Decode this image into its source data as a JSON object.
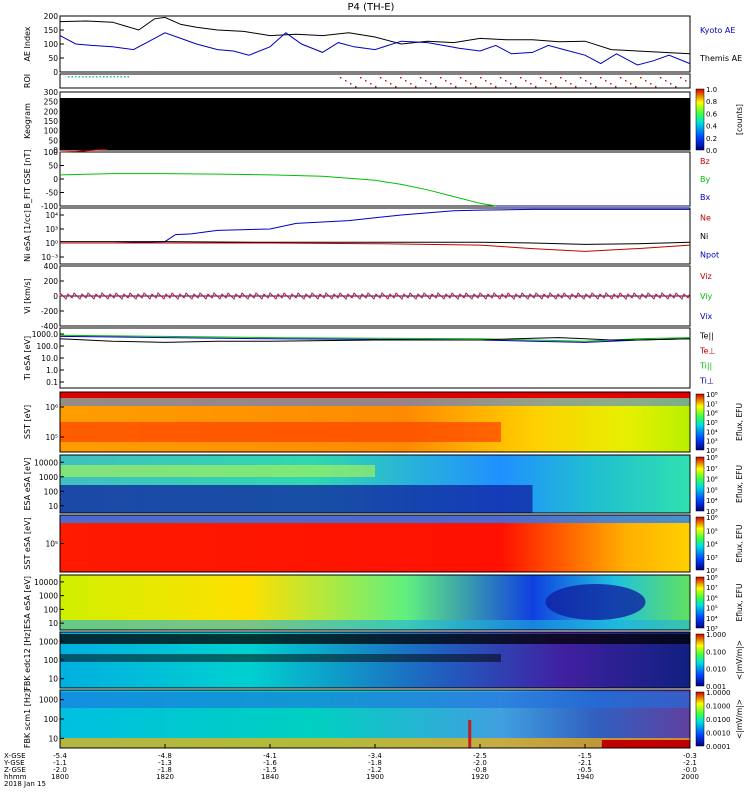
{
  "title": "P4 (TH-E)",
  "chart_data": {
    "type": "line",
    "x_range": [
      1800,
      2000
    ],
    "x_ticks": [
      {
        "x": 1800,
        "values": [
          "-5.4",
          "-1.1",
          "-2.0",
          "1800"
        ]
      },
      {
        "x": 1820,
        "values": [
          "-4.8",
          "-1.3",
          "-1.8",
          "1820"
        ]
      },
      {
        "x": 1840,
        "values": [
          "-4.1",
          "-1.6",
          "-1.5",
          "1840"
        ]
      },
      {
        "x": 1900,
        "values": [
          "-3.4",
          "-1.8",
          "-1.2",
          "1900"
        ]
      },
      {
        "x": 1920,
        "values": [
          "-2.5",
          "-2.0",
          "-0.8",
          "1920"
        ]
      },
      {
        "x": 1940,
        "values": [
          "-1.5",
          "-2.1",
          "-0.5",
          "1940"
        ]
      },
      {
        "x": 2000,
        "values": [
          "-0.3",
          "-2.1",
          "-0.0",
          "2000"
        ]
      }
    ],
    "x_row_labels": [
      "X-GSE",
      "Y-GSE",
      "Z-GSE",
      "hhmm"
    ],
    "date_label": "2018 Jan 15",
    "panels": [
      {
        "id": "ae",
        "ylabel": "AE Index",
        "ylim": [
          0,
          200
        ],
        "yticks": [
          "0",
          "50",
          "100",
          "150",
          "200"
        ],
        "legend": [
          {
            "name": "Kyoto AE",
            "color": "#0000c0"
          },
          {
            "name": "Themis AE",
            "color": "#000000"
          }
        ],
        "series": [
          {
            "name": "Themis AE",
            "color": "#000000",
            "x": [
              1800,
              1805,
              1810,
              1815,
              1818,
              1820,
              1823,
              1826,
              1830,
              1835,
              1840,
              1845,
              1850,
              1855,
              1900,
              1905,
              1910,
              1915,
              1920,
              1925,
              1930,
              1935,
              1940,
              1945,
              1950,
              1955,
              2000
            ],
            "y": [
              180,
              182,
              178,
              150,
              190,
              195,
              170,
              160,
              150,
              145,
              130,
              135,
              130,
              140,
              125,
              100,
              110,
              105,
              120,
              115,
              115,
              108,
              110,
              80,
              75,
              70,
              65
            ]
          },
          {
            "name": "Kyoto AE",
            "color": "#0000c0",
            "x": [
              1800,
              1803,
              1806,
              1810,
              1814,
              1817,
              1820,
              1823,
              1826,
              1830,
              1833,
              1836,
              1840,
              1843,
              1846,
              1850,
              1853,
              1856,
              1900,
              1905,
              1910,
              1913,
              1916,
              1920,
              1923,
              1926,
              1930,
              1933,
              1936,
              1940,
              1943,
              1946,
              1950,
              1953,
              1956,
              2000
            ],
            "y": [
              130,
              100,
              95,
              90,
              80,
              110,
              140,
              120,
              100,
              80,
              75,
              60,
              90,
              140,
              100,
              70,
              105,
              90,
              80,
              110,
              105,
              95,
              85,
              75,
              95,
              65,
              70,
              95,
              80,
              60,
              30,
              65,
              25,
              40,
              60,
              30
            ]
          }
        ]
      },
      {
        "id": "roi",
        "ylabel": "ROI"
      },
      {
        "id": "keogram",
        "ylabel": "Keogram",
        "ylim": [
          0,
          300
        ],
        "yticks": [
          "0",
          "50",
          "100",
          "150",
          "200",
          "250",
          "300"
        ],
        "colorbar": {
          "label": "[counts]",
          "ticks": [
            "0.0",
            "0.2",
            "0.4",
            "0.6",
            "0.8",
            "1.0"
          ]
        }
      },
      {
        "id": "bfit",
        "ylabel": "B_FIT GSE [nT]",
        "ylim": [
          -100,
          100
        ],
        "yticks": [
          "-100",
          "-50",
          "0",
          "50",
          "100"
        ],
        "legend": [
          {
            "name": "Bz",
            "color": "#c00000"
          },
          {
            "name": "By",
            "color": "#00c000"
          },
          {
            "name": "Bx",
            "color": "#0000c0"
          }
        ],
        "series": [
          {
            "name": "By",
            "color": "#00c000",
            "x": [
              1800,
              1810,
              1820,
              1830,
              1840,
              1850,
              1900,
              1905,
              1910,
              1915,
              1920,
              1923
            ],
            "y": [
              15,
              20,
              20,
              18,
              15,
              10,
              -5,
              -20,
              -40,
              -65,
              -90,
              -100
            ]
          },
          {
            "name": "Bz",
            "color": "#c00000",
            "x": [
              1800,
              1803,
              1806,
              1809
            ],
            "y": [
              100,
              102,
              106,
              110
            ]
          },
          {
            "name": "Bx",
            "color": "#0000c0",
            "x": [
              1923,
              1940,
              2000
            ],
            "y": [
              -100,
              -100,
              -100
            ]
          }
        ]
      },
      {
        "id": "ni",
        "ylabel": "Ni eSA [1/cc]",
        "ylim": [
          -3,
          5
        ],
        "log": true,
        "yticks": [
          "10⁴",
          "10³",
          "10⁰",
          "10⁻³"
        ],
        "legend": [
          {
            "name": "Ne",
            "color": "#c00000"
          },
          {
            "name": "Ni",
            "color": "#000000"
          },
          {
            "name": "Npot",
            "color": "#0000c0"
          }
        ],
        "series": [
          {
            "name": "Npot",
            "color": "#0000c0",
            "x": [
              1800,
              1810,
              1820,
              1822,
              1825,
              1828,
              1830,
              1840,
              1845,
              1850,
              1855,
              1900,
              1905,
              1910,
              1915,
              1920,
              1930,
              1940,
              2000
            ],
            "y": [
              0,
              0,
              0.2,
              1.2,
              1.3,
              1.6,
              1.8,
              2,
              2.8,
              3,
              3.2,
              3.6,
              4,
              4.3,
              4.6,
              4.7,
              4.8,
              4.8,
              4.8
            ]
          },
          {
            "name": "Ni",
            "color": "#000000",
            "x": [
              1800,
              1820,
              1840,
              1900,
              1920,
              1930,
              1940,
              1950,
              2000
            ],
            "y": [
              0.2,
              0.2,
              0.1,
              0.1,
              0.1,
              0,
              -0.2,
              -0.1,
              0.1
            ]
          },
          {
            "name": "Ne",
            "color": "#c00000",
            "x": [
              1800,
              1820,
              1840,
              1900,
              1920,
              1930,
              1940,
              1950,
              2000
            ],
            "y": [
              0,
              0,
              0,
              -0.1,
              -0.3,
              -0.8,
              -1.2,
              -0.8,
              -0.3
            ]
          }
        ]
      },
      {
        "id": "vi",
        "ylabel": "Vi [km/s]",
        "ylim": [
          -400,
          400
        ],
        "yticks": [
          "-400",
          "-200",
          "0",
          "200",
          "400"
        ],
        "legend": [
          {
            "name": "Viz",
            "color": "#c00000"
          },
          {
            "name": "Viy",
            "color": "#00c000"
          },
          {
            "name": "Vix",
            "color": "#0000c0"
          }
        ],
        "series": [
          {
            "name": "Viz",
            "color": "#c00000",
            "x": [
              1800,
              2000
            ],
            "y": [
              0,
              0
            ]
          },
          {
            "name": "Viy",
            "color": "#00c000",
            "x": [
              1800,
              2000
            ],
            "y": [
              0,
              0
            ]
          },
          {
            "name": "Vix",
            "color": "#0000c0",
            "x": [
              1800,
              2000
            ],
            "y": [
              0,
              0
            ]
          }
        ]
      },
      {
        "id": "ti",
        "ylabel": "Ti eSA [eV]",
        "ylim": [
          -1,
          4
        ],
        "log": true,
        "yticks": [
          "1000.0",
          "100.0",
          "10.0",
          "1.0",
          "0.1"
        ],
        "legend": [
          {
            "name": "Te||",
            "color": "#000000"
          },
          {
            "name": "Te⊥",
            "color": "#c00000"
          },
          {
            "name": "Ti||",
            "color": "#00c000"
          },
          {
            "name": "Ti⊥",
            "color": "#0000c0"
          }
        ],
        "series": [
          {
            "name": "Ti||",
            "color": "#00c000",
            "x": [
              1800,
              1820,
              1840,
              1900,
              1920,
              1930,
              1940,
              1945,
              1950,
              2000
            ],
            "y": [
              3.4,
              3.3,
              3.2,
              3.15,
              3.1,
              3,
              2.9,
              3,
              3.1,
              3.2
            ]
          },
          {
            "name": "Ti⊥",
            "color": "#0000c0",
            "x": [
              1800,
              1820,
              1840,
              1900,
              1920,
              1930,
              1940,
              1945,
              1950,
              2000
            ],
            "y": [
              3.3,
              3.2,
              3.1,
              3.05,
              3,
              2.9,
              2.8,
              2.9,
              3,
              3.1
            ]
          },
          {
            "name": "Te||",
            "color": "#000000",
            "x": [
              1800,
              1810,
              1820,
              1830,
              1840,
              1850,
              1900,
              1910,
              1920,
              1930,
              1935,
              1940,
              1945,
              1950,
              2000
            ],
            "y": [
              3.1,
              2.9,
              2.8,
              2.9,
              2.9,
              2.95,
              3,
              3,
              3,
              3.15,
              3.2,
              3.1,
              3,
              3,
              3.1
            ]
          }
        ]
      },
      {
        "id": "sst_ion",
        "ylabel": "SST [eV]",
        "spectrogram": true,
        "yticks": [
          "10⁶",
          "10⁵"
        ],
        "colorbar": {
          "label": "Eflux, EFU",
          "ticks": [
            "10²",
            "10³",
            "10⁴",
            "10⁵",
            "10⁶",
            "10⁷",
            "10⁸"
          ]
        }
      },
      {
        "id": "esa_ion",
        "ylabel": "ESA eSA [eV]",
        "spectrogram": true,
        "yticks": [
          "10000",
          "1000",
          "100",
          "10"
        ],
        "colorbar": {
          "label": "Eflux, EFU",
          "ticks": [
            "10³",
            "10⁴",
            "10⁵",
            "10⁶",
            "10⁷",
            "10⁸"
          ]
        }
      },
      {
        "id": "sst_elec",
        "ylabel": "SST eSA [eV]",
        "spectrogram": true,
        "yticks": [
          "10⁵"
        ],
        "colorbar": {
          "label": "Eflux, EFU",
          "ticks": [
            "10²",
            "10³",
            "10⁴",
            "10⁵",
            "10⁶"
          ]
        }
      },
      {
        "id": "esa_elec",
        "ylabel": "ESA eSA [eV]",
        "spectrogram": true,
        "yticks": [
          "10000",
          "1000",
          "100",
          "10"
        ],
        "colorbar": {
          "label": "Eflux, EFU",
          "ticks": [
            "10³",
            "10⁴",
            "10⁵",
            "10⁶",
            "10⁷",
            "10⁸"
          ]
        }
      },
      {
        "id": "fbk_edc",
        "ylabel": "FBK edc12 [Hz]",
        "spectrogram": true,
        "yticks": [
          "1000",
          "100",
          "10"
        ],
        "colorbar": {
          "label": "<|mV/m|>",
          "ticks": [
            "0.001",
            "0.010",
            "0.100",
            "1.000"
          ]
        }
      },
      {
        "id": "fbk_scm",
        "ylabel": "FBK scm1 [Hz]",
        "spectrogram": true,
        "yticks": [
          "1000",
          "100",
          "10"
        ],
        "colorbar": {
          "label": "<|mV/m|>",
          "ticks": [
            "0.0001",
            "0.0010",
            "0.0100",
            "0.1000",
            "1.0000"
          ]
        }
      }
    ]
  }
}
